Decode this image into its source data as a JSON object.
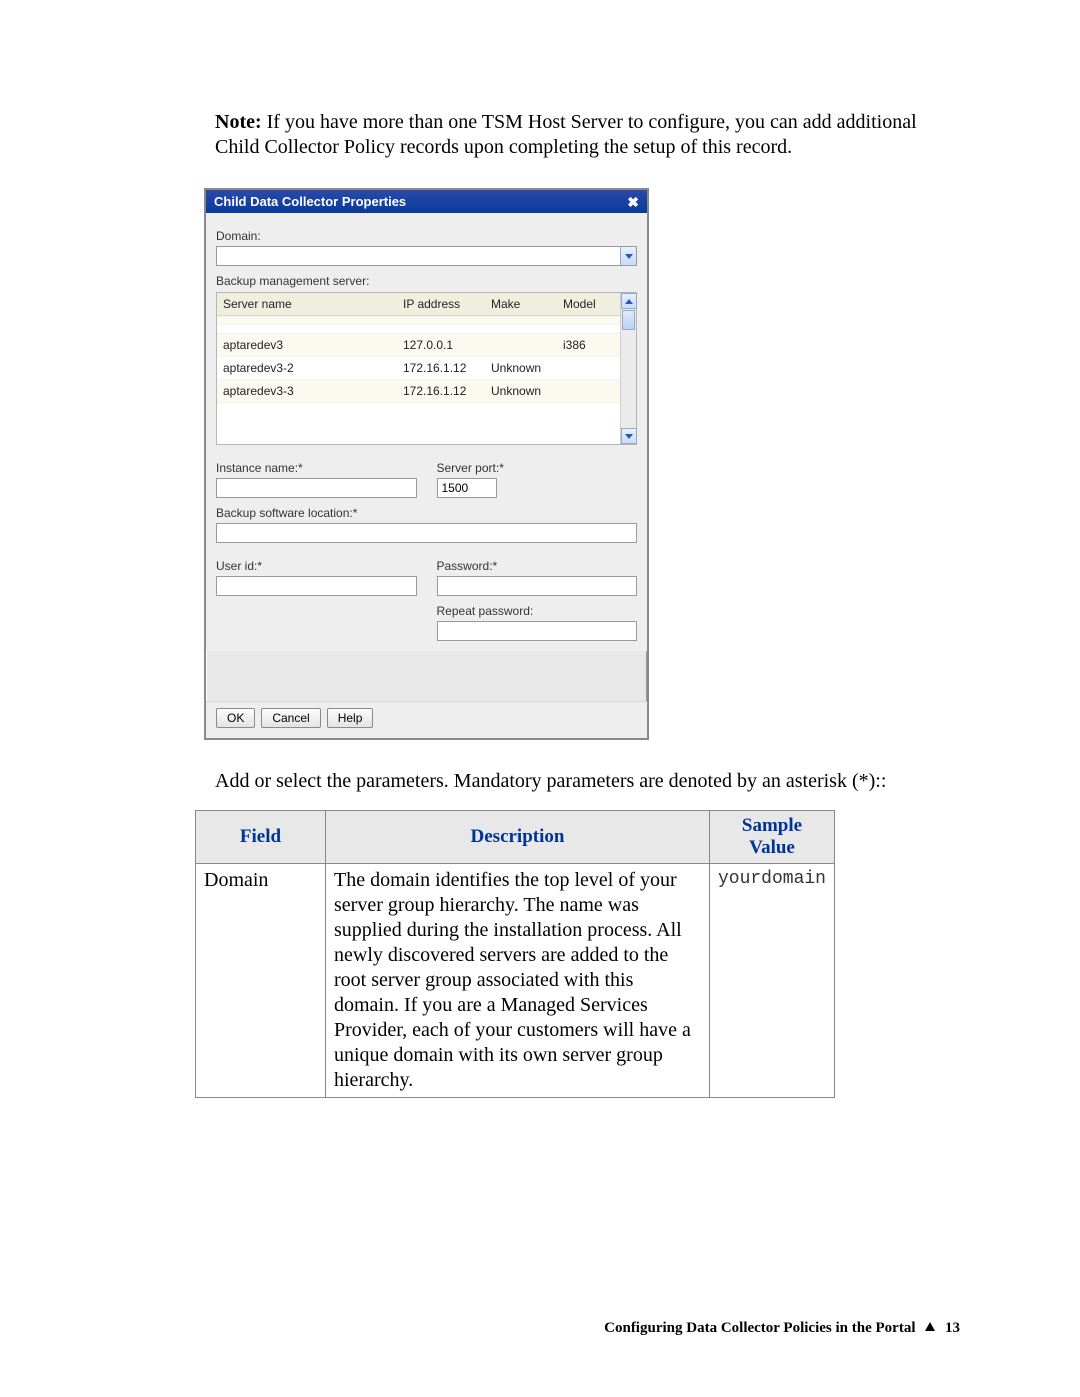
{
  "note": {
    "label": "Note:",
    "text": "If you have more than one TSM Host Server to configure, you can add additional Child Collector Policy records upon completing the setup of this record."
  },
  "dialog": {
    "title": "Child Data Collector Properties",
    "close_glyph": "✖",
    "domain_label": "Domain:",
    "domain_value": "",
    "backup_server_label": "Backup management server:",
    "server_columns": {
      "name": "Server name",
      "ip": "IP address",
      "make": "Make",
      "model": "Model"
    },
    "server_rows": [
      {
        "name": "",
        "ip": "",
        "make": "",
        "model": ""
      },
      {
        "name": "",
        "ip": "",
        "make": "",
        "model": ""
      },
      {
        "name": "aptaredev3",
        "ip": "127.0.0.1",
        "make": "",
        "model": "i386"
      },
      {
        "name": "aptaredev3-2",
        "ip": "172.16.1.12",
        "make": "Unknown",
        "model": ""
      },
      {
        "name": "aptaredev3-3",
        "ip": "172.16.1.12",
        "make": "Unknown",
        "model": ""
      }
    ],
    "instance_label": "Instance name:*",
    "instance_value": "",
    "server_port_label": "Server port:*",
    "server_port_value": "1500",
    "sw_loc_label": "Backup software location:*",
    "sw_loc_value": "",
    "user_label": "User id:*",
    "user_value": "",
    "password_label": "Password:*",
    "password_value": "",
    "repeat_password_label": "Repeat password:",
    "repeat_password_value": "",
    "buttons": {
      "ok": "OK",
      "cancel": "Cancel",
      "help": "Help"
    }
  },
  "after_text": "Add or select the parameters. Mandatory parameters are denoted by an asterisk (*)::",
  "desc_table": {
    "headers": {
      "field": "Field",
      "description": "Description",
      "sample": "Sample Value"
    },
    "rows": [
      {
        "field": "Domain",
        "description": "The domain identifies the top level of your server group hierarchy. The name was supplied during the installation process. All newly discovered servers are added to the root server group associated with this domain. If you are a Managed Services Provider, each of your customers will have a unique domain with its own server group hierarchy.",
        "sample": "yourdomain"
      }
    ]
  },
  "footer": {
    "text": "Configuring Data Collector Policies in the Portal",
    "page": "13"
  }
}
